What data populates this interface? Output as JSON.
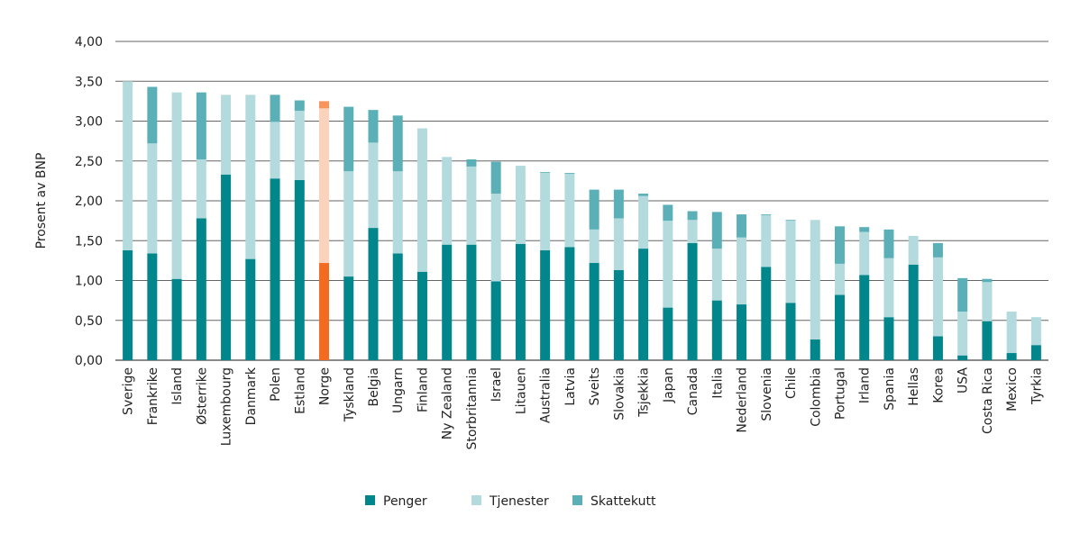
{
  "chart_data": {
    "type": "bar",
    "stacked": true,
    "title": "",
    "xlabel": "",
    "ylabel": "Prosent av BNP",
    "ylim": [
      0,
      4
    ],
    "yticks": [
      "0,00",
      "0,50",
      "1,00",
      "1,50",
      "2,00",
      "2,50",
      "3,00",
      "3,50",
      "4,00"
    ],
    "grid": true,
    "legend_placement": "bottom",
    "categories": [
      "Sverige",
      "Frankrike",
      "Island",
      "Østerrike",
      "Luxembourg",
      "Danmark",
      "Polen",
      "Estland",
      "Norge",
      "Tyskland",
      "Belgia",
      "Ungarn",
      "Finland",
      "Ny Zealand",
      "Storbritannia",
      "Israel",
      "Litauen",
      "Australia",
      "Latvia",
      "Sveits",
      "Slovakia",
      "Tsjekkia",
      "Japan",
      "Canada",
      "Italia",
      "Nederland",
      "Slovenia",
      "Chile",
      "Colombia",
      "Portugal",
      "Irland",
      "Spania",
      "Hellas",
      "Korea",
      "USA",
      "Costa Rica",
      "Mexico",
      "Tyrkia"
    ],
    "highlight_category": "Norge",
    "series": [
      {
        "name": "Penger",
        "color": "#00868b",
        "highlight_color": "#f26b21",
        "values": [
          1.38,
          1.34,
          1.02,
          1.78,
          2.33,
          1.27,
          2.28,
          2.26,
          1.22,
          1.05,
          1.66,
          1.34,
          1.11,
          1.45,
          1.45,
          0.99,
          1.46,
          1.38,
          1.42,
          1.22,
          1.13,
          1.4,
          0.66,
          1.47,
          0.75,
          0.7,
          1.17,
          0.72,
          0.26,
          0.82,
          1.07,
          0.54,
          1.2,
          0.3,
          0.06,
          0.49,
          0.09,
          0.19
        ]
      },
      {
        "name": "Tjenester",
        "color": "#b3dbdd",
        "highlight_color": "#fbd3bc",
        "values": [
          2.12,
          1.38,
          2.34,
          0.74,
          1.0,
          2.06,
          0.71,
          0.87,
          1.94,
          1.32,
          1.07,
          1.03,
          1.8,
          1.1,
          0.98,
          1.1,
          0.98,
          0.97,
          0.92,
          0.42,
          0.65,
          0.66,
          1.09,
          0.29,
          0.65,
          0.84,
          0.65,
          1.03,
          1.5,
          0.39,
          0.54,
          0.74,
          0.36,
          0.99,
          0.55,
          0.49,
          0.52,
          0.35
        ]
      },
      {
        "name": "Skattekutt",
        "color": "#5bb0b7",
        "highlight_color": "#f7955a",
        "values": [
          0,
          0.71,
          0,
          0.84,
          0,
          0,
          0.34,
          0.13,
          0.09,
          0.81,
          0.41,
          0.7,
          0,
          0,
          0.09,
          0.4,
          0,
          0.01,
          0.01,
          0.5,
          0.36,
          0.03,
          0.2,
          0.11,
          0.46,
          0.29,
          0.01,
          0.01,
          0,
          0.47,
          0.06,
          0.36,
          0,
          0.18,
          0.42,
          0.04,
          0,
          0
        ]
      }
    ]
  }
}
